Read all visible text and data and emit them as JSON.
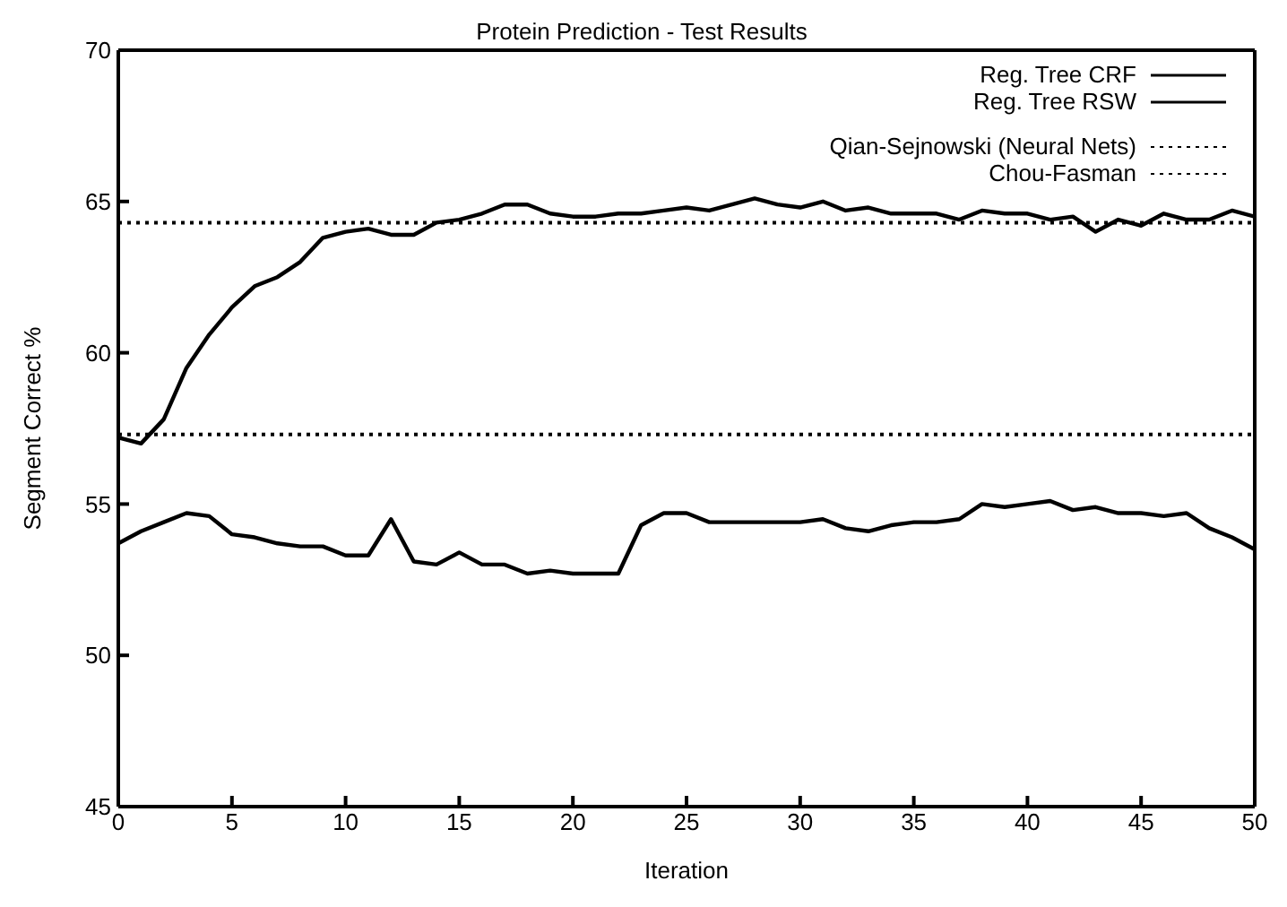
{
  "chart_data": {
    "type": "line",
    "title": "Protein Prediction - Test Results",
    "xlabel": "Iteration",
    "ylabel": "Segment Correct %",
    "x": [
      0,
      1,
      2,
      3,
      4,
      5,
      6,
      7,
      8,
      9,
      10,
      11,
      12,
      13,
      14,
      15,
      16,
      17,
      18,
      19,
      20,
      21,
      22,
      23,
      24,
      25,
      26,
      27,
      28,
      29,
      30,
      31,
      32,
      33,
      34,
      35,
      36,
      37,
      38,
      39,
      40,
      41,
      42,
      43,
      44,
      45,
      46,
      47,
      48,
      49,
      50
    ],
    "series": [
      {
        "name": "Reg. Tree CRF",
        "color": "#000000",
        "line_style": "solid",
        "values": [
          57.2,
          57.0,
          57.8,
          59.5,
          60.6,
          61.5,
          62.2,
          62.5,
          63.0,
          63.8,
          64.0,
          64.1,
          63.9,
          63.9,
          64.3,
          64.4,
          64.6,
          64.9,
          64.9,
          64.6,
          64.5,
          64.5,
          64.6,
          64.6,
          64.7,
          64.8,
          64.7,
          64.9,
          65.1,
          64.9,
          64.8,
          65.0,
          64.7,
          64.8,
          64.6,
          64.6,
          64.6,
          64.4,
          64.7,
          64.6,
          64.6,
          64.4,
          64.5,
          64.0,
          64.4,
          64.2,
          64.6,
          64.4,
          64.4,
          64.7,
          64.5
        ]
      },
      {
        "name": "Reg. Tree RSW",
        "color": "#000000",
        "line_style": "solid",
        "values": [
          53.7,
          54.1,
          54.4,
          54.7,
          54.6,
          54.0,
          53.9,
          53.7,
          53.6,
          53.6,
          53.3,
          53.3,
          54.5,
          53.1,
          53.0,
          53.4,
          53.0,
          53.0,
          52.7,
          52.8,
          52.7,
          52.7,
          52.7,
          54.3,
          54.7,
          54.7,
          54.4,
          54.4,
          54.4,
          54.4,
          54.4,
          54.5,
          54.2,
          54.1,
          54.3,
          54.4,
          54.4,
          54.5,
          55.0,
          54.9,
          55.0,
          55.1,
          54.8,
          54.9,
          54.7,
          54.7,
          54.6,
          54.7,
          54.2,
          53.9,
          53.5
        ]
      },
      {
        "name": "Qian-Sejnowski (Neural Nets)",
        "color": "#000000",
        "line_style": "dotted",
        "values": [
          64.3,
          64.3,
          64.3,
          64.3,
          64.3,
          64.3,
          64.3,
          64.3,
          64.3,
          64.3,
          64.3,
          64.3,
          64.3,
          64.3,
          64.3,
          64.3,
          64.3,
          64.3,
          64.3,
          64.3,
          64.3,
          64.3,
          64.3,
          64.3,
          64.3,
          64.3,
          64.3,
          64.3,
          64.3,
          64.3,
          64.3,
          64.3,
          64.3,
          64.3,
          64.3,
          64.3,
          64.3,
          64.3,
          64.3,
          64.3,
          64.3,
          64.3,
          64.3,
          64.3,
          64.3,
          64.3,
          64.3,
          64.3,
          64.3,
          64.3,
          64.3
        ]
      },
      {
        "name": "Chou-Fasman",
        "color": "#000000",
        "line_style": "dotted",
        "values": [
          57.3,
          57.3,
          57.3,
          57.3,
          57.3,
          57.3,
          57.3,
          57.3,
          57.3,
          57.3,
          57.3,
          57.3,
          57.3,
          57.3,
          57.3,
          57.3,
          57.3,
          57.3,
          57.3,
          57.3,
          57.3,
          57.3,
          57.3,
          57.3,
          57.3,
          57.3,
          57.3,
          57.3,
          57.3,
          57.3,
          57.3,
          57.3,
          57.3,
          57.3,
          57.3,
          57.3,
          57.3,
          57.3,
          57.3,
          57.3,
          57.3,
          57.3,
          57.3,
          57.3,
          57.3,
          57.3,
          57.3,
          57.3,
          57.3,
          57.3,
          57.3
        ]
      }
    ],
    "xlim": [
      0,
      50
    ],
    "xticks": [
      0,
      5,
      10,
      15,
      20,
      25,
      30,
      35,
      40,
      45,
      50
    ],
    "ylim": [
      45,
      70
    ],
    "yticks": [
      45,
      50,
      55,
      60,
      65,
      70
    ],
    "legend": "top right",
    "marker": "none"
  }
}
